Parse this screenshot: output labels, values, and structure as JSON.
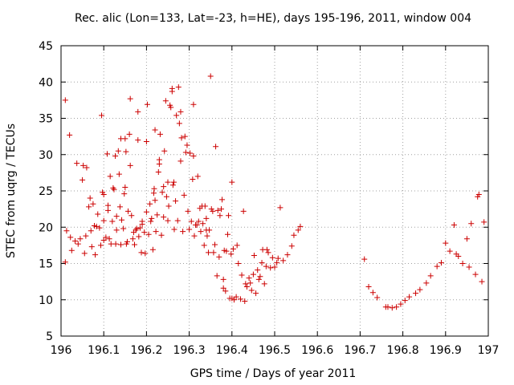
{
  "chart_data": {
    "type": "scatter",
    "title": "Rec. alic (Lon=133, Lat=-23, h=HE), days 195-196, 2011, window 004",
    "xlabel": "GPS time / Days of year 2011",
    "ylabel": "STEC from uqrg / TECUs",
    "xlim": [
      196,
      197
    ],
    "ylim": [
      5,
      45
    ],
    "xticks": [
      "196",
      "196.1",
      "196.2",
      "196.3",
      "196.4",
      "196.5",
      "196.6",
      "196.7",
      "196.8",
      "196.9",
      "197"
    ],
    "yticks": [
      "5",
      "10",
      "15",
      "20",
      "25",
      "30",
      "35",
      "40",
      "45"
    ],
    "grid": true,
    "marker": "plus",
    "color": "#cc0000",
    "series": [
      {
        "points": [
          [
            196.01,
            37.5
          ],
          [
            196.01,
            15.2
          ],
          [
            196.013,
            19.5
          ],
          [
            196.02,
            32.7
          ],
          [
            196.022,
            18.6
          ],
          [
            196.025,
            16.8
          ],
          [
            196.033,
            18.1
          ],
          [
            196.037,
            28.8
          ],
          [
            196.04,
            17.7
          ],
          [
            196.045,
            18.4
          ],
          [
            196.05,
            26.5
          ],
          [
            196.052,
            28.5
          ],
          [
            196.055,
            16.4
          ],
          [
            196.058,
            18.8
          ],
          [
            196.06,
            28.2
          ],
          [
            196.065,
            22.8
          ],
          [
            196.068,
            24.0
          ],
          [
            196.07,
            19.5
          ],
          [
            196.072,
            17.3
          ],
          [
            196.075,
            23.2
          ],
          [
            196.078,
            20.2
          ],
          [
            196.08,
            16.2
          ],
          [
            196.083,
            20.1
          ],
          [
            196.086,
            21.8
          ],
          [
            196.09,
            19.9
          ],
          [
            196.093,
            17.5
          ],
          [
            196.095,
            35.4
          ],
          [
            196.097,
            24.8
          ],
          [
            196.1,
            24.5
          ],
          [
            196.1,
            18.2
          ],
          [
            196.1,
            20.9
          ],
          [
            196.105,
            18.6
          ],
          [
            196.108,
            30.1
          ],
          [
            196.11,
            23.0
          ],
          [
            196.11,
            22.3
          ],
          [
            196.113,
            18.4
          ],
          [
            196.115,
            27.0
          ],
          [
            196.117,
            17.7
          ],
          [
            196.12,
            20.8
          ],
          [
            196.122,
            25.4
          ],
          [
            196.124,
            25.2
          ],
          [
            196.127,
            29.8
          ],
          [
            196.128,
            17.7
          ],
          [
            196.13,
            21.5
          ],
          [
            196.13,
            19.6
          ],
          [
            196.134,
            30.5
          ],
          [
            196.136,
            27.3
          ],
          [
            196.138,
            22.8
          ],
          [
            196.14,
            17.6
          ],
          [
            196.14,
            32.2
          ],
          [
            196.142,
            21.0
          ],
          [
            196.146,
            19.8
          ],
          [
            196.148,
            24.6
          ],
          [
            196.15,
            25.5
          ],
          [
            196.15,
            32.2
          ],
          [
            196.152,
            30.4
          ],
          [
            196.153,
            17.7
          ],
          [
            196.155,
            18.0
          ],
          [
            196.157,
            22.2
          ],
          [
            196.16,
            32.8
          ],
          [
            196.162,
            37.7
          ],
          [
            196.162,
            28.5
          ],
          [
            196.165,
            21.6
          ],
          [
            196.168,
            18.4
          ],
          [
            196.17,
            19.3
          ],
          [
            196.172,
            17.6
          ],
          [
            196.175,
            19.6
          ],
          [
            196.177,
            19.8
          ],
          [
            196.18,
            32.0
          ],
          [
            196.18,
            35.9
          ],
          [
            196.182,
            18.7
          ],
          [
            196.185,
            19.9
          ],
          [
            196.188,
            16.5
          ],
          [
            196.19,
            20.4
          ],
          [
            196.19,
            20.8
          ],
          [
            196.195,
            19.3
          ],
          [
            196.197,
            16.4
          ],
          [
            196.2,
            22.1
          ],
          [
            196.2,
            31.8
          ],
          [
            196.202,
            36.9
          ],
          [
            196.205,
            19.0
          ],
          [
            196.208,
            23.2
          ],
          [
            196.21,
            20.8
          ],
          [
            196.212,
            21.2
          ],
          [
            196.215,
            16.9
          ],
          [
            196.217,
            24.7
          ],
          [
            196.218,
            25.3
          ],
          [
            196.22,
            33.4
          ],
          [
            196.22,
            23.7
          ],
          [
            196.222,
            19.4
          ],
          [
            196.225,
            21.7
          ],
          [
            196.228,
            27.6
          ],
          [
            196.23,
            28.7
          ],
          [
            196.23,
            29.3
          ],
          [
            196.232,
            32.8
          ],
          [
            196.235,
            18.9
          ],
          [
            196.237,
            24.8
          ],
          [
            196.24,
            21.4
          ],
          [
            196.24,
            25.6
          ],
          [
            196.242,
            30.5
          ],
          [
            196.245,
            37.4
          ],
          [
            196.247,
            24.2
          ],
          [
            196.25,
            20.9
          ],
          [
            196.25,
            26.2
          ],
          [
            196.252,
            22.9
          ],
          [
            196.255,
            36.8
          ],
          [
            196.257,
            36.5
          ],
          [
            196.26,
            39.1
          ],
          [
            196.26,
            38.7
          ],
          [
            196.262,
            25.8
          ],
          [
            196.264,
            26.2
          ],
          [
            196.265,
            19.7
          ],
          [
            196.268,
            23.6
          ],
          [
            196.27,
            35.4
          ],
          [
            196.273,
            20.9
          ],
          [
            196.275,
            39.3
          ],
          [
            196.277,
            34.3
          ],
          [
            196.28,
            35.9
          ],
          [
            196.28,
            29.1
          ],
          [
            196.282,
            32.3
          ],
          [
            196.285,
            19.4
          ],
          [
            196.288,
            24.4
          ],
          [
            196.29,
            32.5
          ],
          [
            196.292,
            30.3
          ],
          [
            196.295,
            31.3
          ],
          [
            196.297,
            22.2
          ],
          [
            196.3,
            19.7
          ],
          [
            196.302,
            30.2
          ],
          [
            196.305,
            20.8
          ],
          [
            196.308,
            26.6
          ],
          [
            196.31,
            29.8
          ],
          [
            196.31,
            36.9
          ],
          [
            196.312,
            18.8
          ],
          [
            196.315,
            20.3
          ],
          [
            196.318,
            20.3
          ],
          [
            196.32,
            27.0
          ],
          [
            196.322,
            20.8
          ],
          [
            196.325,
            22.6
          ],
          [
            196.327,
            19.4
          ],
          [
            196.33,
            22.9
          ],
          [
            196.332,
            20.5
          ],
          [
            196.335,
            17.5
          ],
          [
            196.337,
            22.9
          ],
          [
            196.34,
            21.2
          ],
          [
            196.34,
            19.6
          ],
          [
            196.342,
            18.8
          ],
          [
            196.345,
            16.5
          ],
          [
            196.347,
            19.6
          ],
          [
            196.35,
            40.8
          ],
          [
            196.352,
            22.5
          ],
          [
            196.355,
            22.2
          ],
          [
            196.357,
            16.5
          ],
          [
            196.36,
            17.6
          ],
          [
            196.362,
            31.1
          ],
          [
            196.365,
            13.3
          ],
          [
            196.367,
            22.3
          ],
          [
            196.37,
            15.9
          ],
          [
            196.372,
            21.6
          ],
          [
            196.375,
            22.5
          ],
          [
            196.377,
            23.8
          ],
          [
            196.38,
            12.8
          ],
          [
            196.38,
            11.6
          ],
          [
            196.382,
            16.8
          ],
          [
            196.385,
            11.2
          ],
          [
            196.387,
            16.7
          ],
          [
            196.39,
            19.0
          ],
          [
            196.392,
            21.6
          ],
          [
            196.395,
            10.2
          ],
          [
            196.398,
            16.3
          ],
          [
            196.4,
            26.2
          ],
          [
            196.4,
            10.2
          ],
          [
            196.403,
            17.0
          ],
          [
            196.405,
            10.0
          ],
          [
            196.41,
            10.4
          ],
          [
            196.412,
            17.5
          ],
          [
            196.415,
            15.0
          ],
          [
            196.42,
            10.1
          ],
          [
            196.423,
            13.4
          ],
          [
            196.427,
            22.2
          ],
          [
            196.43,
            9.8
          ],
          [
            196.432,
            12.2
          ],
          [
            196.435,
            11.8
          ],
          [
            196.44,
            13.0
          ],
          [
            196.443,
            12.3
          ],
          [
            196.446,
            11.3
          ],
          [
            196.45,
            13.5
          ],
          [
            196.452,
            16.1
          ],
          [
            196.456,
            10.9
          ],
          [
            196.46,
            14.1
          ],
          [
            196.463,
            12.8
          ],
          [
            196.466,
            13.2
          ],
          [
            196.47,
            15.1
          ],
          [
            196.472,
            16.9
          ],
          [
            196.476,
            12.2
          ],
          [
            196.48,
            14.6
          ],
          [
            196.482,
            16.9
          ],
          [
            196.485,
            16.5
          ],
          [
            196.49,
            14.4
          ],
          [
            196.495,
            15.8
          ],
          [
            196.5,
            14.5
          ],
          [
            196.505,
            15.1
          ],
          [
            196.508,
            15.7
          ],
          [
            196.513,
            22.7
          ],
          [
            196.52,
            15.4
          ],
          [
            196.53,
            16.2
          ],
          [
            196.54,
            17.4
          ],
          [
            196.545,
            18.9
          ],
          [
            196.555,
            19.6
          ],
          [
            196.56,
            20.1
          ],
          [
            196.71,
            15.6
          ],
          [
            196.72,
            11.8
          ],
          [
            196.73,
            11.0
          ],
          [
            196.74,
            10.3
          ],
          [
            196.76,
            9.0
          ],
          [
            196.765,
            9.0
          ],
          [
            196.775,
            8.9
          ],
          [
            196.785,
            9.0
          ],
          [
            196.795,
            9.4
          ],
          [
            196.805,
            9.9
          ],
          [
            196.815,
            10.4
          ],
          [
            196.83,
            10.9
          ],
          [
            196.84,
            11.4
          ],
          [
            196.855,
            12.3
          ],
          [
            196.865,
            13.3
          ],
          [
            196.88,
            14.6
          ],
          [
            196.89,
            15.1
          ],
          [
            196.9,
            17.8
          ],
          [
            196.91,
            16.7
          ],
          [
            196.92,
            20.3
          ],
          [
            196.925,
            16.3
          ],
          [
            196.93,
            16.0
          ],
          [
            196.94,
            15.0
          ],
          [
            196.95,
            18.4
          ],
          [
            196.955,
            14.5
          ],
          [
            196.96,
            20.5
          ],
          [
            196.97,
            13.5
          ],
          [
            196.975,
            24.2
          ],
          [
            196.978,
            24.5
          ],
          [
            196.985,
            12.5
          ],
          [
            196.99,
            20.7
          ]
        ]
      }
    ]
  }
}
